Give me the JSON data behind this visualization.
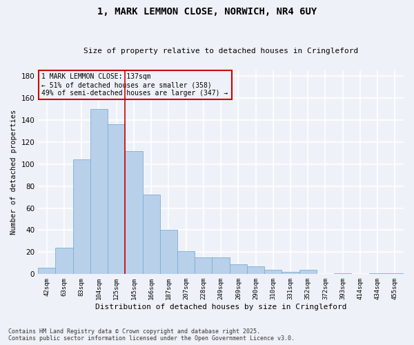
{
  "title": "1, MARK LEMMON CLOSE, NORWICH, NR4 6UY",
  "subtitle": "Size of property relative to detached houses in Cringleford",
  "xlabel": "Distribution of detached houses by size in Cringleford",
  "ylabel": "Number of detached properties",
  "categories": [
    "42sqm",
    "63sqm",
    "83sqm",
    "104sqm",
    "125sqm",
    "145sqm",
    "166sqm",
    "187sqm",
    "207sqm",
    "228sqm",
    "249sqm",
    "269sqm",
    "290sqm",
    "310sqm",
    "331sqm",
    "352sqm",
    "372sqm",
    "393sqm",
    "414sqm",
    "434sqm",
    "455sqm"
  ],
  "values": [
    6,
    24,
    104,
    150,
    136,
    112,
    72,
    40,
    21,
    15,
    15,
    9,
    7,
    4,
    2,
    4,
    0,
    1,
    0,
    1,
    1
  ],
  "bar_color": "#b8d0ea",
  "bar_edge_color": "#7aafd4",
  "background_color": "#eef2f8",
  "grid_color": "#ffffff",
  "vline_color": "#cc0000",
  "annotation_text": "1 MARK LEMMON CLOSE: 137sqm\n← 51% of detached houses are smaller (358)\n49% of semi-detached houses are larger (347) →",
  "annotation_box_color": "#cc0000",
  "ylim": [
    0,
    185
  ],
  "yticks": [
    0,
    20,
    40,
    60,
    80,
    100,
    120,
    140,
    160,
    180
  ],
  "footnote1": "Contains HM Land Registry data © Crown copyright and database right 2025.",
  "footnote2": "Contains public sector information licensed under the Open Government Licence v3.0."
}
